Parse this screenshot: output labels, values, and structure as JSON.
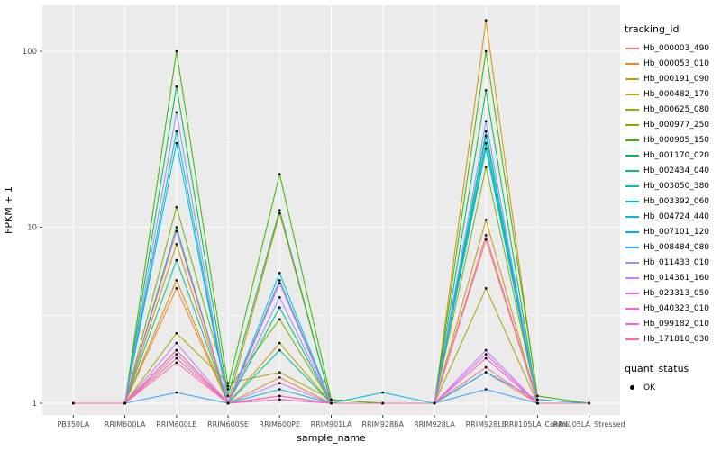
{
  "chart_data": {
    "type": "line",
    "title": "",
    "xlabel": "sample_name",
    "ylabel": "FPKM + 1",
    "y_scale": "log10",
    "y_ticks": [
      "1",
      "10",
      "100"
    ],
    "ylim": [
      1,
      175
    ],
    "grid": true,
    "panel_bg": "#EBEBEB",
    "grid_color": "#FFFFFF",
    "point_color": "#000000",
    "categories": [
      "PB350LA",
      "RRIM600LA",
      "RRIM600LE",
      "RRIM600SE",
      "RRIM600PE",
      "RRIM901LA",
      "RRIM928BA",
      "RRIM928LA",
      "RRIM928LE",
      "RRII105LA_Control",
      "RRII105LA_Stressed"
    ],
    "series": [
      {
        "name": "Hb_000003_490",
        "color": "#F8766D",
        "values": [
          1,
          1,
          1.8,
          1,
          1.1,
          1,
          1,
          1,
          1.5,
          1,
          1
        ]
      },
      {
        "name": "Hb_000053_010",
        "color": "#EA8331",
        "values": [
          1,
          1,
          4.5,
          1,
          1.4,
          1,
          1,
          1,
          8.5,
          1,
          1
        ]
      },
      {
        "name": "Hb_000191_090",
        "color": "#D89000",
        "values": [
          1,
          1,
          5,
          1,
          12,
          1,
          1,
          1,
          150,
          1.05,
          1
        ]
      },
      {
        "name": "Hb_000482_170",
        "color": "#C09B00",
        "values": [
          1,
          1,
          8,
          1,
          2.2,
          1,
          1,
          1,
          11,
          1,
          1
        ]
      },
      {
        "name": "Hb_000625_080",
        "color": "#A3A500",
        "values": [
          1,
          1,
          2.5,
          1.3,
          1.5,
          1.05,
          1,
          1,
          4.5,
          1,
          1
        ]
      },
      {
        "name": "Hb_000977_250",
        "color": "#7CAE00",
        "values": [
          1,
          1,
          13,
          1.2,
          3,
          1,
          1,
          1,
          22,
          1,
          1
        ]
      },
      {
        "name": "Hb_000985_150",
        "color": "#39B600",
        "values": [
          1,
          1,
          100,
          1.25,
          20,
          1.05,
          1,
          1,
          100,
          1.1,
          1
        ]
      },
      {
        "name": "Hb_001170_020",
        "color": "#00BB4E",
        "values": [
          1,
          1,
          63,
          1.1,
          12.5,
          1,
          1,
          1,
          60,
          1,
          1
        ]
      },
      {
        "name": "Hb_002434_040",
        "color": "#00BF7D",
        "values": [
          1,
          1,
          10,
          1,
          3.5,
          1,
          1,
          1,
          30,
          1,
          1
        ]
      },
      {
        "name": "Hb_003050_380",
        "color": "#00C1A3",
        "values": [
          1,
          1,
          6.5,
          1,
          2,
          1,
          1,
          1,
          33,
          1,
          1
        ]
      },
      {
        "name": "Hb_003392_060",
        "color": "#00BFC4",
        "values": [
          1,
          1,
          35,
          1,
          5.5,
          1,
          1,
          1,
          35,
          1,
          1
        ]
      },
      {
        "name": "Hb_004724_440",
        "color": "#00BAE0",
        "values": [
          1,
          1,
          2,
          1,
          1.2,
          1,
          1.15,
          1,
          1.5,
          1.05,
          1
        ]
      },
      {
        "name": "Hb_007101_120",
        "color": "#00B0F6",
        "values": [
          1,
          1,
          30,
          1,
          5,
          1,
          1,
          1,
          28,
          1,
          1
        ]
      },
      {
        "name": "Hb_008484_080",
        "color": "#35A2FF",
        "values": [
          1,
          1,
          1.15,
          1,
          1.05,
          1,
          1,
          1,
          1.2,
          1,
          1
        ]
      },
      {
        "name": "Hb_011433_010",
        "color": "#9590FF",
        "values": [
          1,
          1,
          45,
          1,
          4,
          1,
          1,
          1,
          40,
          1,
          1
        ]
      },
      {
        "name": "Hb_014361_160",
        "color": "#C77CFF",
        "values": [
          1,
          1,
          2.2,
          1,
          1.3,
          1,
          1,
          1,
          2.0,
          1,
          1
        ]
      },
      {
        "name": "Hb_023313_050",
        "color": "#E76BF3",
        "values": [
          1,
          1,
          1.9,
          1,
          1.1,
          1,
          1,
          1,
          1.9,
          1,
          1
        ]
      },
      {
        "name": "Hb_040323_010",
        "color": "#FA62DB",
        "values": [
          1,
          1,
          9.5,
          1,
          4.8,
          1,
          1,
          1,
          9,
          1,
          1
        ]
      },
      {
        "name": "Hb_099182_010",
        "color": "#FF62BC",
        "values": [
          1,
          1,
          1.7,
          1,
          1.05,
          1,
          1,
          1,
          1.8,
          1,
          1
        ]
      },
      {
        "name": "Hb_171810_030",
        "color": "#FF6A98",
        "values": [
          1,
          1,
          2.0,
          1,
          1.1,
          1,
          1,
          1,
          1.6,
          1,
          1
        ]
      }
    ],
    "legend": {
      "color_title": "tracking_id",
      "shape_title": "quant_status",
      "shape_items": [
        {
          "label": "OK"
        }
      ]
    }
  }
}
